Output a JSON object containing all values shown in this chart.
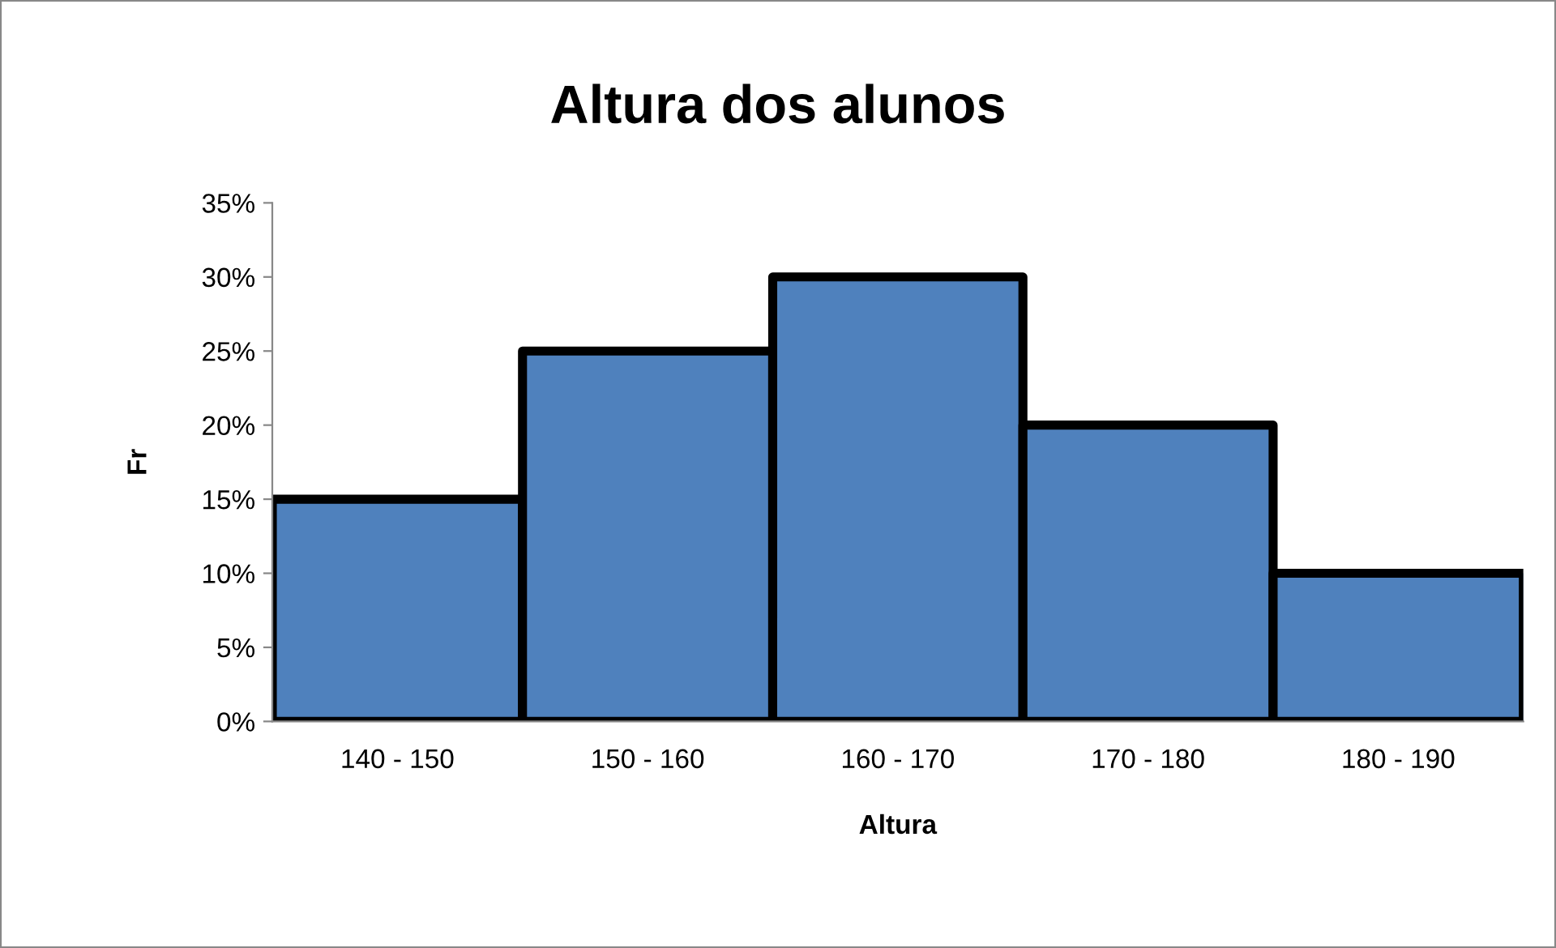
{
  "chart_data": {
    "type": "bar",
    "title": "Altura dos alunos",
    "xlabel": "Altura",
    "ylabel": "Fr",
    "categories": [
      "140 - 150",
      "150 - 160",
      "160 - 170",
      "170 - 180",
      "180 - 190"
    ],
    "values": [
      15,
      25,
      30,
      20,
      10
    ],
    "color": "#4f81bd",
    "ylim": [
      0,
      35
    ],
    "yticks": [
      {
        "value": 0,
        "label": "0%"
      },
      {
        "value": 5,
        "label": "5%"
      },
      {
        "value": 10,
        "label": "10%"
      },
      {
        "value": 15,
        "label": "15%"
      },
      {
        "value": 20,
        "label": "20%"
      },
      {
        "value": 25,
        "label": "25%"
      },
      {
        "value": 30,
        "label": "30%"
      },
      {
        "value": 35,
        "label": "35%"
      }
    ],
    "grid": false,
    "legend": false
  }
}
